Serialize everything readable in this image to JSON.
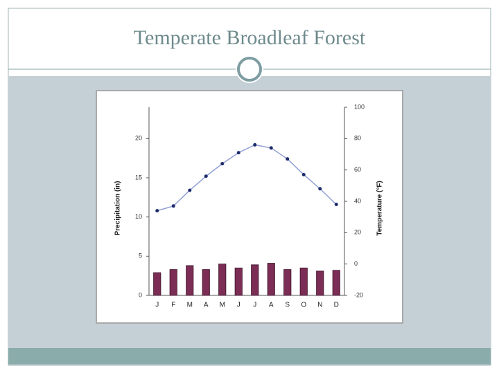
{
  "slide": {
    "title": "Temperate Broadleaf Forest"
  },
  "chart_data": {
    "type": "bar_line",
    "y_label": "Precipitation (in)",
    "y2_label": "Temperature (°F)",
    "categories": [
      "J",
      "F",
      "M",
      "A",
      "M",
      "J",
      "J",
      "A",
      "S",
      "O",
      "N",
      "D"
    ],
    "series": [
      {
        "name": "Precipitation",
        "type": "bar",
        "axis": "y",
        "color": "#7b2d55",
        "values": [
          2.9,
          3.3,
          3.8,
          3.3,
          4.0,
          3.5,
          3.9,
          4.1,
          3.3,
          3.5,
          3.1,
          3.2
        ]
      },
      {
        "name": "Temperature",
        "type": "line",
        "axis": "y2",
        "color": "#8f9fd6",
        "marker_color": "#1c2a6b",
        "values": [
          34,
          37,
          47,
          56,
          64,
          71,
          76,
          74,
          67,
          57,
          48,
          38
        ]
      }
    ],
    "ylim": [
      0,
      24
    ],
    "yticks": [
      0,
      5,
      10,
      15,
      20
    ],
    "y2lim": [
      -20,
      100
    ],
    "y2ticks": [
      -20,
      0,
      20,
      40,
      60,
      80,
      100
    ]
  }
}
